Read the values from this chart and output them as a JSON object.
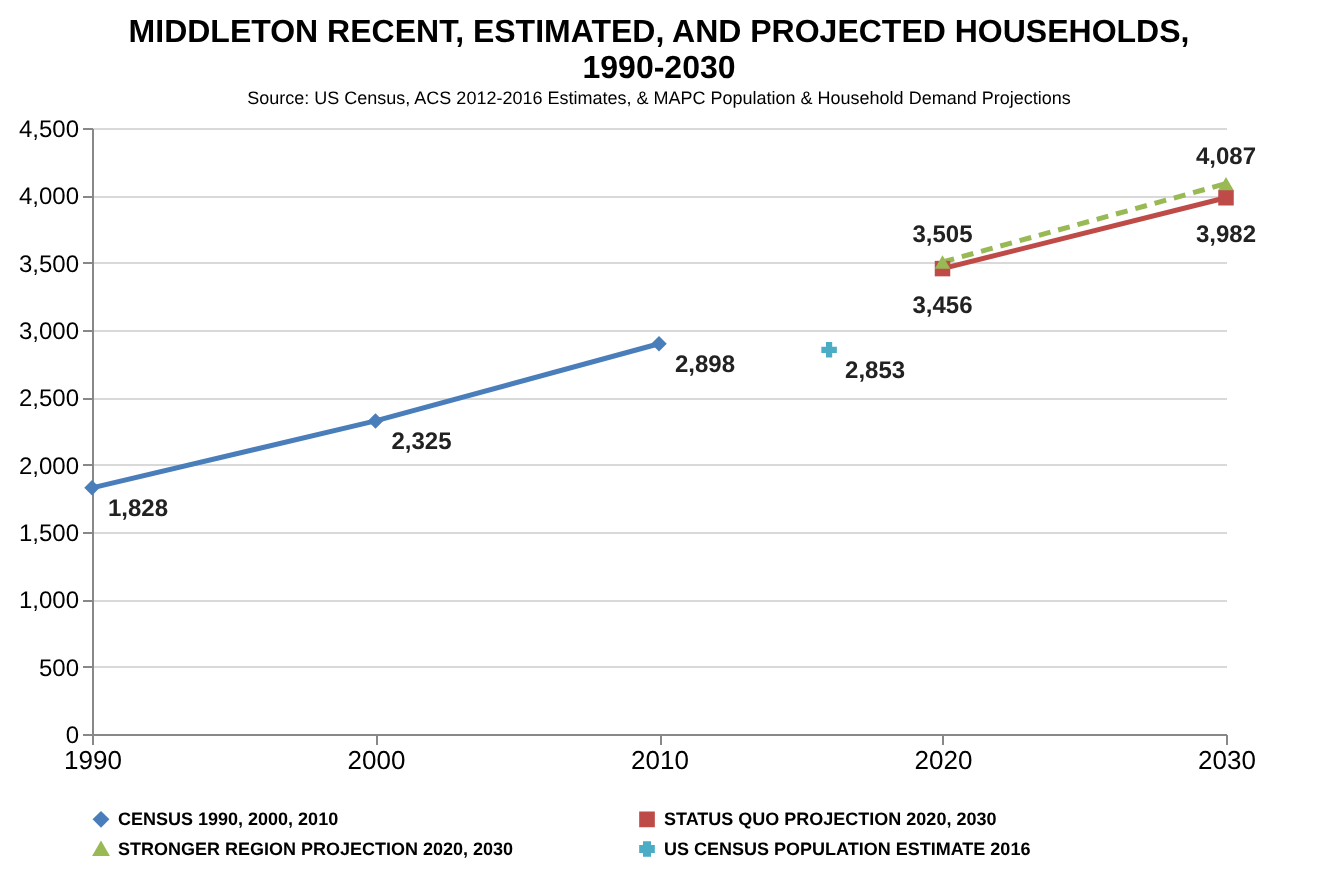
{
  "chart_data": {
    "type": "line",
    "title": "MIDDLETON RECENT, ESTIMATED, AND PROJECTED HOUSEHOLDS, 1990-2030",
    "subtitle": "Source: US Census, ACS 2012-2016 Estimates, & MAPC Population & Household Demand Projections",
    "series": [
      {
        "name": "CENSUS 1990, 2000, 2010",
        "color": "#4a7ebb",
        "x": [
          1990,
          2000,
          2010
        ],
        "values": [
          1828,
          2325,
          2898
        ],
        "value_labels": [
          "1,828",
          "2,325",
          "2,898"
        ],
        "marker": "diamond"
      },
      {
        "name": "STATUS QUO PROJECTION 2020, 2030",
        "color": "#be4b48",
        "x": [
          2020,
          2030
        ],
        "values": [
          3456,
          3982
        ],
        "value_labels": [
          "3,456",
          "3,982"
        ],
        "marker": "square"
      },
      {
        "name": "STRONGER REGION PROJECTION 2020, 2030",
        "color": "#98b954",
        "x": [
          2020,
          2030
        ],
        "values": [
          3505,
          4087
        ],
        "value_labels": [
          "3,505",
          "4,087"
        ],
        "marker": "triangle",
        "line_style": "dashed"
      },
      {
        "name": "US CENSUS POPULATION ESTIMATE 2016",
        "color": "#4bacc6",
        "x": [
          2016
        ],
        "values": [
          2853
        ],
        "value_labels": [
          "2,853"
        ],
        "marker": "cross"
      }
    ],
    "xlim": [
      1990,
      2030
    ],
    "xticks": [
      1990,
      2000,
      2010,
      2020,
      2030
    ],
    "ylim": [
      0,
      4500
    ],
    "yticks": [
      0,
      500,
      {
        "value": 1000,
        "label": "1,000"
      },
      {
        "value": 1500,
        "label": "1,500"
      },
      {
        "value": 2000,
        "label": "2,000"
      },
      {
        "value": 2500,
        "label": "2,500"
      },
      {
        "value": 3000,
        "label": "3,000"
      },
      {
        "value": 3500,
        "label": "3,500"
      },
      {
        "value": 4000,
        "label": "4,000"
      },
      {
        "value": 4500,
        "label": "4,500"
      }
    ],
    "grid": "y",
    "legend": "bottom"
  }
}
